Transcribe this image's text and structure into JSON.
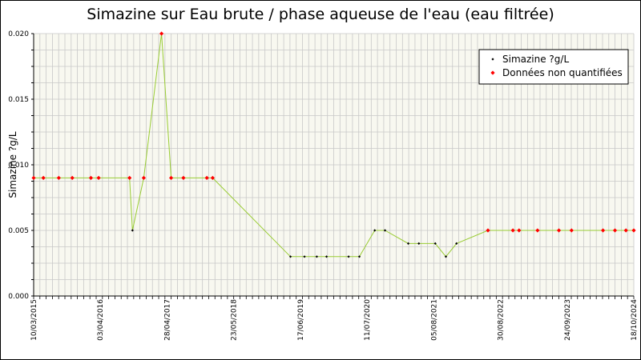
{
  "chart_data": {
    "type": "line",
    "title": "Simazine sur Eau brute / phase aqueuse de l'eau (eau filtrée)",
    "ylabel": "Simazine ?g/L",
    "xlabel": "",
    "ylim": [
      0,
      0.02
    ],
    "y_ticks": [
      "0.000",
      "0.005",
      "0.010",
      "0.015",
      "0.020"
    ],
    "x_range": [
      "2015-03-10",
      "2024-10-18"
    ],
    "x_ticks": [
      "10/03/2015",
      "03/04/2016",
      "28/04/2017",
      "23/05/2018",
      "17/06/2019",
      "11/07/2020",
      "05/08/2021",
      "30/08/2022",
      "24/09/2023",
      "18/10/2024"
    ],
    "grid": true,
    "legend_position": "top-right",
    "series": [
      {
        "name": "Simazine ?g/L",
        "color": "#99cc33",
        "points": [
          {
            "x": "2015-03-10",
            "y": 0.009,
            "q": false
          },
          {
            "x": "2015-05-06",
            "y": 0.009,
            "q": false
          },
          {
            "x": "2015-08-04",
            "y": 0.009,
            "q": false
          },
          {
            "x": "2015-10-22",
            "y": 0.009,
            "q": false
          },
          {
            "x": "2016-02-08",
            "y": 0.009,
            "q": false
          },
          {
            "x": "2016-03-24",
            "y": 0.009,
            "q": false
          },
          {
            "x": "2016-09-21",
            "y": 0.009,
            "q": false
          },
          {
            "x": "2016-10-08",
            "y": 0.005,
            "q": true
          },
          {
            "x": "2016-12-13",
            "y": 0.009,
            "q": false
          },
          {
            "x": "2017-03-27",
            "y": 0.02,
            "q": false
          },
          {
            "x": "2017-05-22",
            "y": 0.009,
            "q": false
          },
          {
            "x": "2017-08-02",
            "y": 0.009,
            "q": false
          },
          {
            "x": "2017-12-17",
            "y": 0.009,
            "q": false
          },
          {
            "x": "2018-01-20",
            "y": 0.009,
            "q": false
          },
          {
            "x": "2019-04-20",
            "y": 0.003,
            "q": true
          },
          {
            "x": "2019-07-11",
            "y": 0.003,
            "q": true
          },
          {
            "x": "2019-09-21",
            "y": 0.003,
            "q": true
          },
          {
            "x": "2019-11-17",
            "y": 0.003,
            "q": true
          },
          {
            "x": "2020-03-25",
            "y": 0.003,
            "q": true
          },
          {
            "x": "2020-05-27",
            "y": 0.003,
            "q": true
          },
          {
            "x": "2020-08-25",
            "y": 0.005,
            "q": true
          },
          {
            "x": "2020-10-24",
            "y": 0.005,
            "q": true
          },
          {
            "x": "2021-03-09",
            "y": 0.004,
            "q": true
          },
          {
            "x": "2021-05-10",
            "y": 0.004,
            "q": true
          },
          {
            "x": "2021-08-14",
            "y": 0.004,
            "q": true
          },
          {
            "x": "2021-10-15",
            "y": 0.003,
            "q": true
          },
          {
            "x": "2021-12-16",
            "y": 0.004,
            "q": true
          },
          {
            "x": "2022-06-18",
            "y": 0.005,
            "q": false
          },
          {
            "x": "2022-11-11",
            "y": 0.005,
            "q": false
          },
          {
            "x": "2022-12-17",
            "y": 0.005,
            "q": false
          },
          {
            "x": "2023-04-04",
            "y": 0.005,
            "q": false
          },
          {
            "x": "2023-08-07",
            "y": 0.005,
            "q": false
          },
          {
            "x": "2023-10-20",
            "y": 0.005,
            "q": false
          },
          {
            "x": "2024-04-21",
            "y": 0.005,
            "q": false
          },
          {
            "x": "2024-06-30",
            "y": 0.005,
            "q": false
          },
          {
            "x": "2024-09-02",
            "y": 0.005,
            "q": false
          },
          {
            "x": "2024-10-18",
            "y": 0.005,
            "q": false
          }
        ]
      }
    ],
    "legend": [
      {
        "label": "Simazine ?g/L",
        "marker_color": "#000000"
      },
      {
        "label": "Données non quantifiées",
        "marker_color": "#ff0000"
      }
    ],
    "colors": {
      "line": "#99cc33",
      "quantified": "#000000",
      "non_quantified": "#ff0000",
      "grid": "#c8c8c8",
      "plot_bg": "#f8f8f0"
    }
  }
}
